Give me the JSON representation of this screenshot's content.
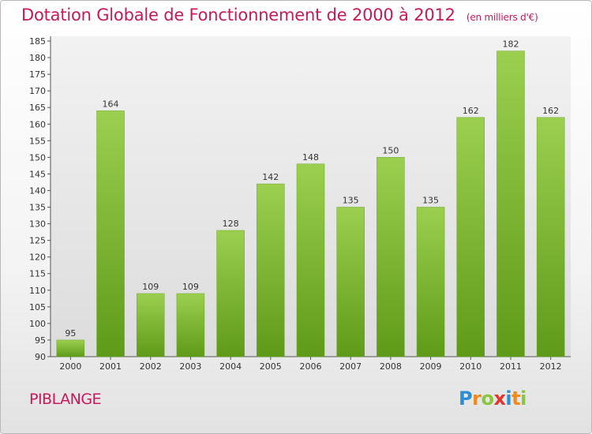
{
  "title": "Dotation Globale de Fonctionnement de 2000 à 2012",
  "subtitle": "(en milliers d'€)",
  "commune": "PIBLANGE",
  "logo": {
    "letters": [
      "P",
      "r",
      "o",
      "x",
      "i",
      "t",
      "i"
    ],
    "colors": [
      "#2a8fd6",
      "#f08a1c",
      "#8bc53f",
      "#e3342f",
      "#2a8fd6",
      "#f08a1c",
      "#8bc53f"
    ]
  },
  "chart_data": {
    "type": "bar",
    "title": "Dotation Globale de Fonctionnement de 2000 à 2012",
    "subtitle": "(en milliers d'€)",
    "categories": [
      "2000",
      "2001",
      "2002",
      "2003",
      "2004",
      "2005",
      "2006",
      "2007",
      "2008",
      "2009",
      "2010",
      "2011",
      "2012"
    ],
    "values": [
      95,
      164,
      109,
      109,
      128,
      142,
      148,
      135,
      150,
      135,
      162,
      182,
      162
    ],
    "ylim": [
      90,
      185
    ],
    "yticks": [
      90,
      95,
      100,
      105,
      110,
      115,
      120,
      125,
      130,
      135,
      140,
      145,
      150,
      155,
      160,
      165,
      170,
      175,
      180,
      185
    ],
    "grid": false,
    "bar_color": "#7ab533"
  }
}
